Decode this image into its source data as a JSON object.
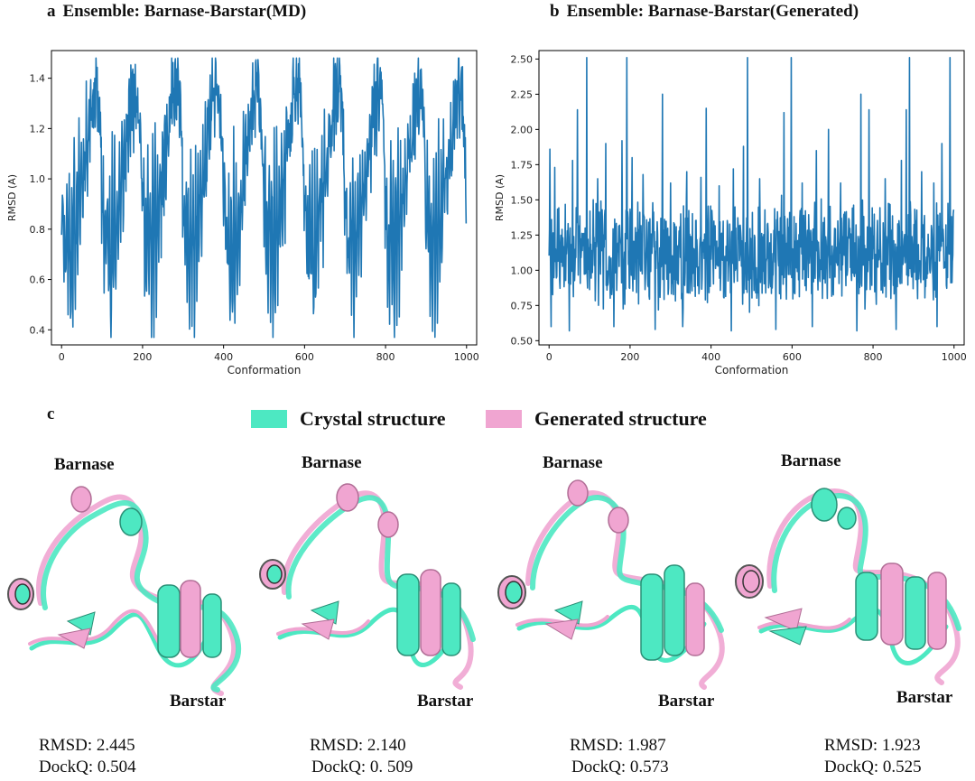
{
  "panels": {
    "a": {
      "letter": "a",
      "title": "Ensemble: Barnase-Barstar(MD)"
    },
    "b": {
      "letter": "b",
      "title": "Ensemble: Barnase-Barstar(Generated)"
    },
    "c": {
      "letter": "c"
    }
  },
  "colors": {
    "line": "#1f77b4",
    "crystal": "#4de8c2",
    "generated": "#f0a5d1"
  },
  "legend": [
    {
      "label": "Crystal structure",
      "color": "#4de8c2"
    },
    {
      "label": "Generated structure",
      "color": "#f0a5d1"
    }
  ],
  "structures": [
    {
      "barnase_label": "Barnase",
      "barstar_label": "Barstar",
      "rmsd": "RMSD: 2.445",
      "dockq": "DockQ: 0.504"
    },
    {
      "barnase_label": "Barnase",
      "barstar_label": "Barstar",
      "rmsd": "RMSD: 2.140",
      "dockq": "DockQ: 0. 509"
    },
    {
      "barnase_label": "Barnase",
      "barstar_label": "Barstar",
      "rmsd": "RMSD: 1.987",
      "dockq": "DockQ: 0.573"
    },
    {
      "barnase_label": "Barnase",
      "barstar_label": "Barstar",
      "rmsd": "RMSD: 1.923",
      "dockq": "DockQ: 0.525"
    }
  ],
  "chart_data": [
    {
      "type": "line",
      "title": "Ensemble: Barnase-Barstar(MD)",
      "xlabel": "Conformation",
      "ylabel": "RMSD (A)",
      "xlim": [
        -25,
        1025
      ],
      "ylim": [
        0.34,
        1.51
      ],
      "xticks": [
        0,
        200,
        400,
        600,
        800,
        1000
      ],
      "yticks": [
        0.4,
        0.6,
        0.8,
        1.0,
        1.2,
        1.4
      ],
      "ytick_labels": [
        "0.4",
        "0.6",
        "0.8",
        "1.0",
        "1.2",
        "1.4"
      ],
      "grid": false,
      "series": [
        {
          "period": 100,
          "n_points": 1000,
          "y_min": 0.37,
          "y_max": 1.48,
          "pattern_x": [
            0,
            3,
            5,
            8,
            10,
            13,
            16,
            19,
            22,
            25,
            28,
            31,
            34,
            37,
            40,
            43,
            46,
            49,
            52,
            55,
            58,
            61,
            64,
            67,
            70,
            72,
            73,
            75,
            78,
            80,
            83,
            86,
            89,
            92,
            95,
            98,
            99
          ],
          "pattern_y": [
            0.85,
            1.04,
            0.62,
            0.88,
            0.55,
            1.02,
            0.49,
            1.05,
            0.37,
            1.07,
            0.45,
            1.1,
            0.52,
            1.05,
            0.68,
            1.12,
            0.75,
            1.17,
            0.86,
            1.2,
            0.98,
            1.25,
            1.06,
            1.3,
            1.15,
            1.48,
            1.2,
            1.38,
            1.22,
            1.45,
            1.25,
            1.4,
            1.32,
            1.28,
            1.18,
            1.05,
            0.82
          ]
        }
      ]
    },
    {
      "type": "line",
      "title": "Ensemble: Barnase-Barstar(Generated)",
      "xlabel": "Conformation",
      "ylabel": "RMSD (A)",
      "xlim": [
        -25,
        1025
      ],
      "ylim": [
        0.47,
        2.56
      ],
      "xticks": [
        0,
        200,
        400,
        600,
        800,
        1000
      ],
      "yticks": [
        0.5,
        0.75,
        1.0,
        1.25,
        1.5,
        1.75,
        2.0,
        2.25,
        2.5
      ],
      "ytick_labels": [
        "0.50",
        "0.75",
        "1.00",
        "1.25",
        "1.50",
        "1.75",
        "2.00",
        "2.25",
        "2.50"
      ],
      "grid": false,
      "series": [
        {
          "n_points": 1000,
          "y_min": 0.57,
          "y_max": 2.51,
          "baseline": 1.12,
          "peaks": [
            {
              "x": 2,
              "y": 1.86
            },
            {
              "x": 14,
              "y": 1.73
            },
            {
              "x": 58,
              "y": 1.78
            },
            {
              "x": 70,
              "y": 2.14
            },
            {
              "x": 93,
              "y": 2.51
            },
            {
              "x": 120,
              "y": 1.65
            },
            {
              "x": 140,
              "y": 1.9
            },
            {
              "x": 180,
              "y": 1.92
            },
            {
              "x": 192,
              "y": 2.51
            },
            {
              "x": 205,
              "y": 1.8
            },
            {
              "x": 232,
              "y": 1.68
            },
            {
              "x": 280,
              "y": 2.25
            },
            {
              "x": 300,
              "y": 1.62
            },
            {
              "x": 340,
              "y": 1.7
            },
            {
              "x": 375,
              "y": 1.66
            },
            {
              "x": 388,
              "y": 2.15
            },
            {
              "x": 420,
              "y": 1.6
            },
            {
              "x": 455,
              "y": 1.72
            },
            {
              "x": 480,
              "y": 1.88
            },
            {
              "x": 490,
              "y": 2.51
            },
            {
              "x": 520,
              "y": 1.65
            },
            {
              "x": 560,
              "y": 1.7
            },
            {
              "x": 580,
              "y": 2.12
            },
            {
              "x": 598,
              "y": 2.51
            },
            {
              "x": 625,
              "y": 1.62
            },
            {
              "x": 660,
              "y": 1.85
            },
            {
              "x": 690,
              "y": 2.0
            },
            {
              "x": 720,
              "y": 1.62
            },
            {
              "x": 760,
              "y": 1.7
            },
            {
              "x": 770,
              "y": 2.25
            },
            {
              "x": 790,
              "y": 2.14
            },
            {
              "x": 830,
              "y": 1.65
            },
            {
              "x": 870,
              "y": 1.78
            },
            {
              "x": 882,
              "y": 2.14
            },
            {
              "x": 890,
              "y": 2.51
            },
            {
              "x": 920,
              "y": 1.7
            },
            {
              "x": 950,
              "y": 1.62
            },
            {
              "x": 970,
              "y": 1.9
            },
            {
              "x": 990,
              "y": 2.51
            },
            {
              "x": 998,
              "y": 1.4
            }
          ],
          "dips": [
            {
              "x": 5,
              "y": 0.6
            },
            {
              "x": 50,
              "y": 0.57
            },
            {
              "x": 160,
              "y": 0.6
            },
            {
              "x": 262,
              "y": 0.58
            },
            {
              "x": 330,
              "y": 0.6
            },
            {
              "x": 450,
              "y": 0.57
            },
            {
              "x": 560,
              "y": 0.58
            },
            {
              "x": 650,
              "y": 0.6
            },
            {
              "x": 760,
              "y": 0.57
            },
            {
              "x": 857,
              "y": 0.58
            },
            {
              "x": 958,
              "y": 0.6
            }
          ]
        }
      ]
    }
  ]
}
